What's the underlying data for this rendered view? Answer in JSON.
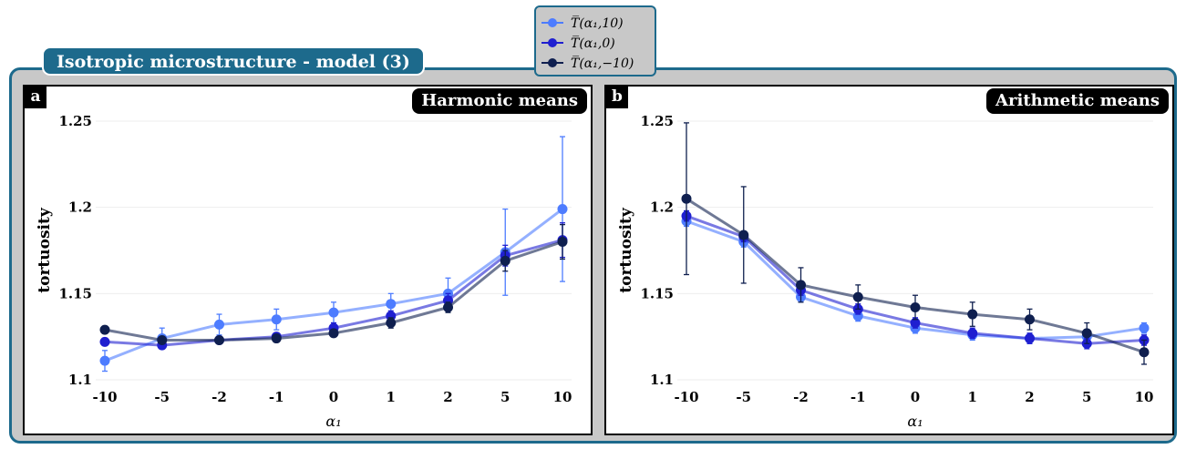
{
  "frame_title": "Isotropic microstructure - model (3)",
  "legend": [
    {
      "label": "T̅(α₁,10)",
      "color": "#4d7cff"
    },
    {
      "label": "T̅(α₁,0)",
      "color": "#1f1fd0"
    },
    {
      "label": "T̅(α₁,−10)",
      "color": "#0f1f4f"
    }
  ],
  "chart_data": [
    {
      "type": "line",
      "panel_letter": "a",
      "title": "Harmonic means",
      "xlabel": "α₁",
      "ylabel": "tortuosity",
      "categories": [
        "-10",
        "-5",
        "-2",
        "-1",
        "0",
        "1",
        "2",
        "5",
        "10"
      ],
      "yticks": [
        "1.1",
        "1.15",
        "1.2",
        "1.25"
      ],
      "ylim": [
        1.1,
        1.25
      ],
      "grid": true,
      "series": [
        {
          "name": "T̅(α₁,10)",
          "color": "#4d7cff",
          "values": [
            1.111,
            1.124,
            1.132,
            1.135,
            1.139,
            1.144,
            1.15,
            1.174,
            1.199
          ],
          "errors": [
            0.006,
            0.006,
            0.006,
            0.006,
            0.006,
            0.006,
            0.009,
            0.025,
            0.042
          ]
        },
        {
          "name": "T̅(α₁,0)",
          "color": "#1f1fd0",
          "values": [
            1.122,
            1.12,
            1.123,
            1.125,
            1.13,
            1.137,
            1.146,
            1.172,
            1.181
          ],
          "errors": [
            0.002,
            0.002,
            0.002,
            0.002,
            0.003,
            0.003,
            0.004,
            0.006,
            0.01
          ]
        },
        {
          "name": "T̅(α₁,−10)",
          "color": "#0f1f4f",
          "values": [
            1.129,
            1.123,
            1.123,
            1.124,
            1.127,
            1.133,
            1.142,
            1.169,
            1.18
          ],
          "errors": [
            0.002,
            0.002,
            0.002,
            0.002,
            0.002,
            0.003,
            0.003,
            0.006,
            0.01
          ]
        }
      ]
    },
    {
      "type": "line",
      "panel_letter": "b",
      "title": "Arithmetic means",
      "xlabel": "α₁",
      "ylabel": "tortuosity",
      "categories": [
        "-10",
        "-5",
        "-2",
        "-1",
        "0",
        "1",
        "2",
        "5",
        "10"
      ],
      "yticks": [
        "1.1",
        "1.15",
        "1.2",
        "1.25"
      ],
      "ylim": [
        1.1,
        1.25
      ],
      "grid": true,
      "series": [
        {
          "name": "T̅(α₁,10)",
          "color": "#4d7cff",
          "values": [
            1.192,
            1.18,
            1.148,
            1.137,
            1.13,
            1.126,
            1.124,
            1.125,
            1.13
          ],
          "errors": [
            0.003,
            0.003,
            0.003,
            0.003,
            0.003,
            0.003,
            0.003,
            0.003,
            0.003
          ]
        },
        {
          "name": "T̅(α₁,0)",
          "color": "#1f1fd0",
          "values": [
            1.195,
            1.183,
            1.152,
            1.141,
            1.133,
            1.127,
            1.124,
            1.121,
            1.123
          ],
          "errors": [
            0.003,
            0.003,
            0.003,
            0.003,
            0.003,
            0.003,
            0.003,
            0.003,
            0.003
          ]
        },
        {
          "name": "T̅(α₁,−10)",
          "color": "#0f1f4f",
          "values": [
            1.205,
            1.184,
            1.155,
            1.148,
            1.142,
            1.138,
            1.135,
            1.127,
            1.116
          ],
          "errors": [
            0.044,
            0.028,
            0.01,
            0.007,
            0.007,
            0.007,
            0.006,
            0.006,
            0.007
          ]
        }
      ]
    }
  ]
}
